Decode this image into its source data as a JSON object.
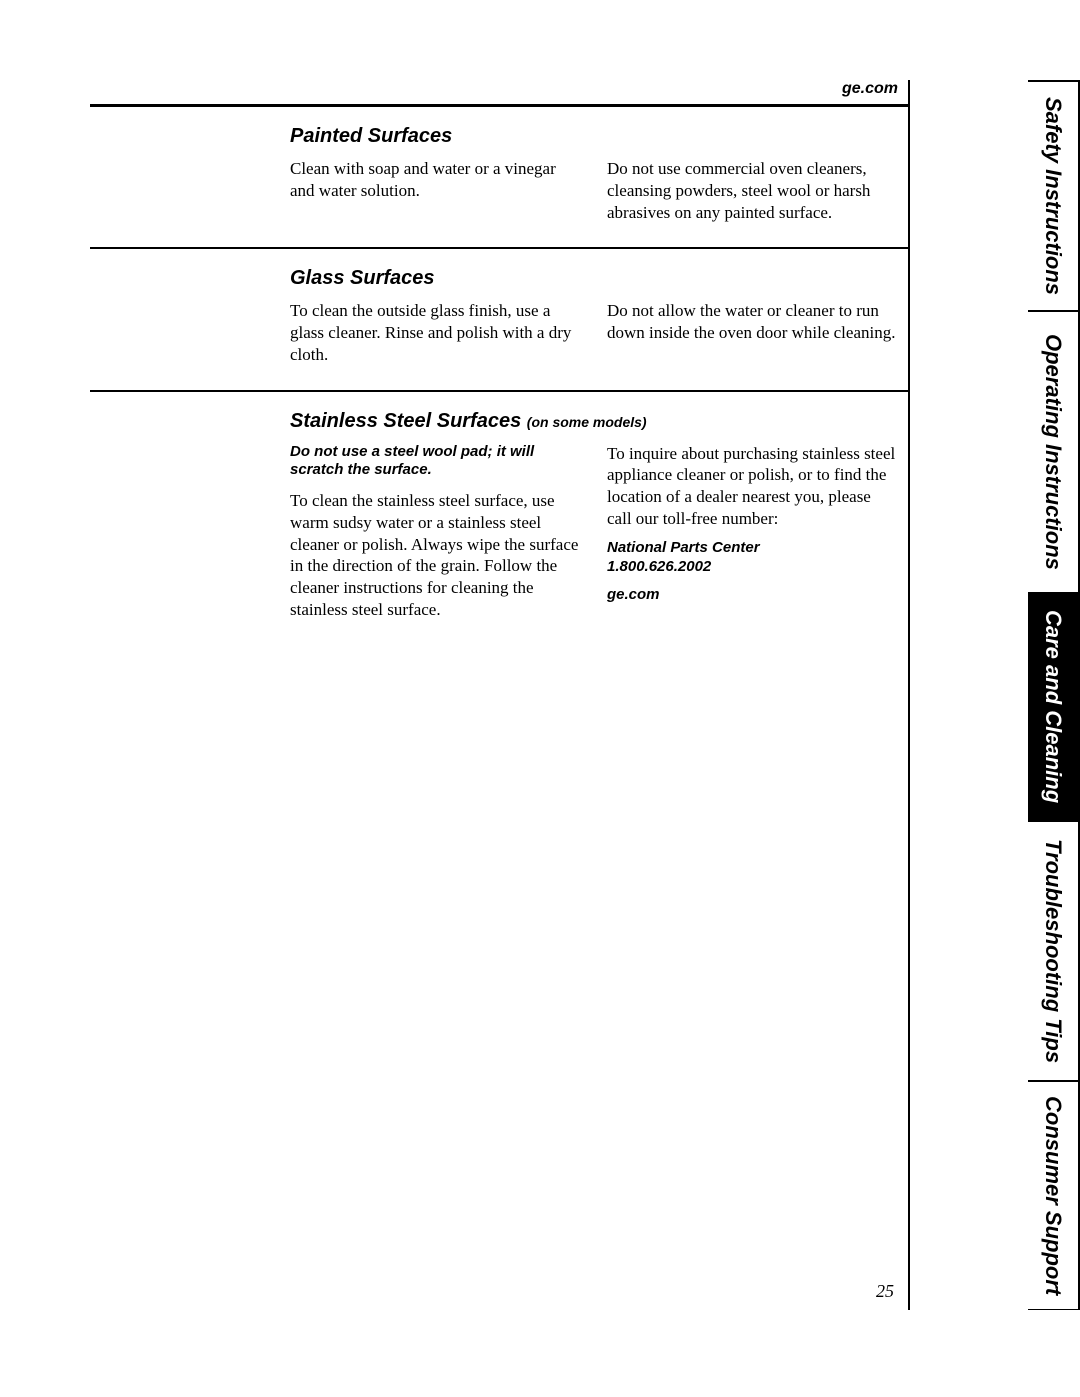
{
  "header": {
    "url": "ge.com"
  },
  "sections": {
    "painted": {
      "heading": "Painted Surfaces",
      "left": "Clean with soap and water or a vinegar and water solution.",
      "right": "Do not use commercial oven cleaners, cleansing powders, steel wool or harsh abrasives on any painted surface."
    },
    "glass": {
      "heading": "Glass Surfaces",
      "left": "To clean the outside glass finish, use a glass cleaner. Rinse and polish with a dry cloth.",
      "right": "Do not allow the water or cleaner to run down inside the oven door while cleaning."
    },
    "stainless": {
      "heading": "Stainless Steel Surfaces",
      "note": "(on some models)",
      "warn": "Do not use a steel wool pad; it will scratch the surface.",
      "left": "To clean the stainless steel surface, use warm sudsy water or a stainless steel cleaner or polish. Always wipe the surface in the direction of the grain. Follow the cleaner instructions for cleaning the stainless steel surface.",
      "right": "To inquire about purchasing stainless steel appliance cleaner or polish, or to find the location of a dealer nearest you, please call our toll-free number:",
      "contact1": "National Parts Center",
      "contact2": "1.800.626.2002",
      "contact3": "ge.com"
    }
  },
  "tabs": {
    "t1": "Safety Instructions",
    "t2": "Operating Instructions",
    "t3": "Care and Cleaning",
    "t4": "Troubleshooting Tips",
    "t5": "Consumer Support"
  },
  "pageNumber": "25"
}
